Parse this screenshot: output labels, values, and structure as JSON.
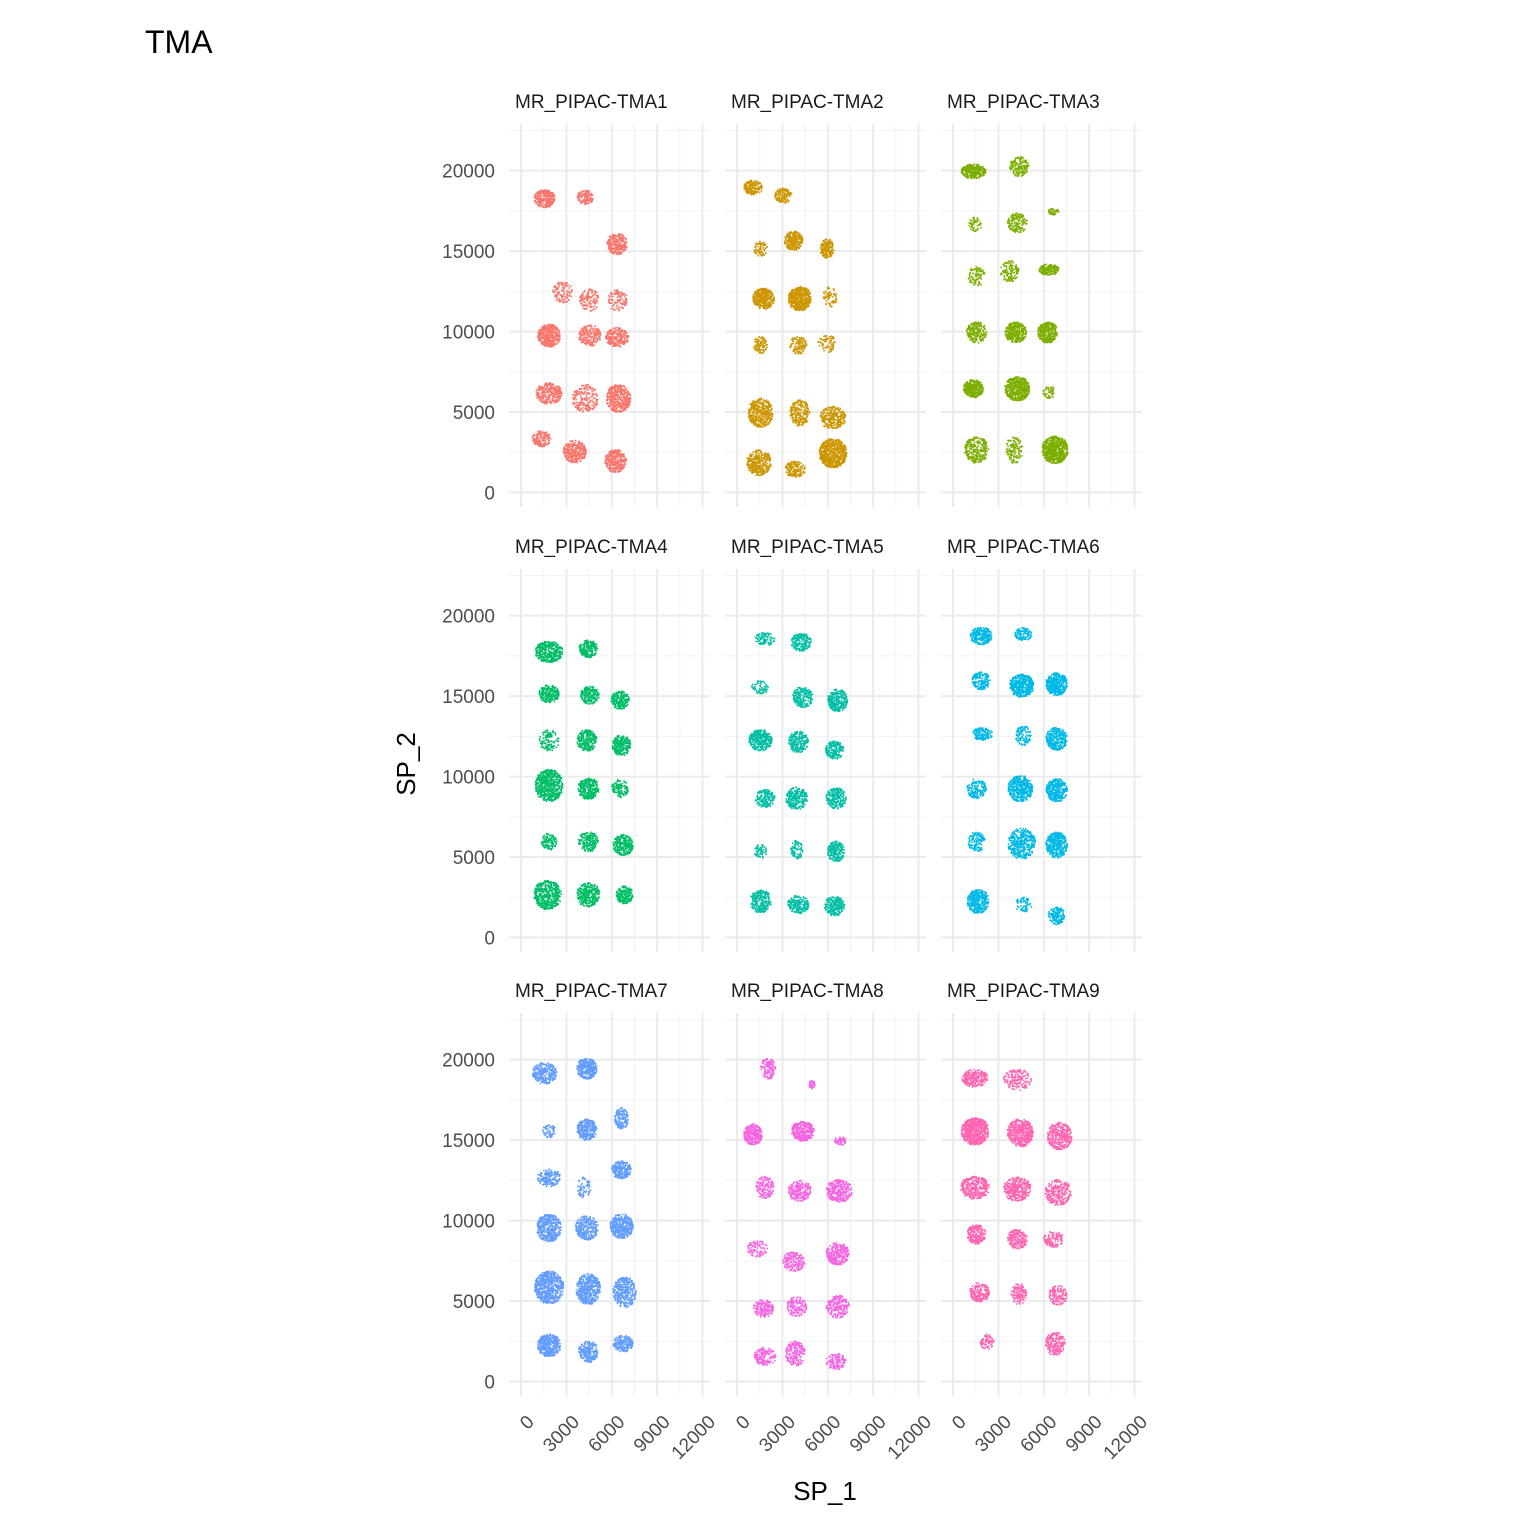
{
  "title": "TMA",
  "chart_data": {
    "type": "scatter",
    "title": "TMA",
    "xlabel": "SP_1",
    "ylabel": "SP_2",
    "xlim": [
      -800,
      12500
    ],
    "ylim": [
      -900,
      22900
    ],
    "x_ticks": [
      0,
      3000,
      6000,
      9000,
      12000
    ],
    "x_tick_labels": [
      "0",
      "3000",
      "6000",
      "9000",
      "12000"
    ],
    "y_ticks": [
      0,
      5000,
      10000,
      15000,
      20000
    ],
    "y_tick_labels": [
      "0",
      "5000",
      "10000",
      "15000",
      "20000"
    ],
    "grid": true,
    "legend": "none",
    "facets": [
      {
        "label": "MR_PIPAC-TMA1",
        "color": "#F8766D",
        "cores": [
          [
            1500,
            18300,
            1350,
            1100,
            0.8
          ],
          [
            4200,
            18400,
            1050,
            900,
            0.55
          ],
          [
            6300,
            15500,
            1300,
            1300,
            0.7
          ],
          [
            2700,
            12500,
            1300,
            1300,
            0.25
          ],
          [
            4500,
            12000,
            1350,
            1350,
            0.3
          ],
          [
            6300,
            12000,
            1300,
            1300,
            0.25
          ],
          [
            1800,
            9800,
            1500,
            1400,
            0.75
          ],
          [
            4500,
            9800,
            1450,
            1300,
            0.45
          ],
          [
            6300,
            9700,
            1500,
            1200,
            0.6
          ],
          [
            1800,
            6200,
            1700,
            1300,
            0.55
          ],
          [
            4200,
            5900,
            1700,
            1700,
            0.3
          ],
          [
            6400,
            5900,
            1600,
            1700,
            0.65
          ],
          [
            1300,
            3400,
            1200,
            1000,
            0.5
          ],
          [
            3500,
            2600,
            1500,
            1400,
            0.6
          ],
          [
            6200,
            2000,
            1400,
            1400,
            0.7
          ]
        ]
      },
      {
        "label": "MR_PIPAC-TMA2",
        "color": "#CD9600",
        "cores": [
          [
            1000,
            19000,
            1200,
            900,
            0.65
          ],
          [
            3000,
            18500,
            1100,
            900,
            0.55
          ],
          [
            1500,
            15200,
            900,
            900,
            0.3
          ],
          [
            3700,
            15700,
            1200,
            1200,
            0.7
          ],
          [
            5900,
            15200,
            900,
            1200,
            0.65
          ],
          [
            1700,
            12100,
            1400,
            1300,
            0.85
          ],
          [
            4100,
            12100,
            1500,
            1500,
            0.9
          ],
          [
            6100,
            12200,
            900,
            1200,
            0.25
          ],
          [
            1500,
            9200,
            900,
            1100,
            0.35
          ],
          [
            4000,
            9200,
            1100,
            1100,
            0.4
          ],
          [
            5900,
            9300,
            1200,
            1100,
            0.2
          ],
          [
            1500,
            5000,
            1600,
            1800,
            0.6
          ],
          [
            4100,
            5000,
            1300,
            1600,
            0.45
          ],
          [
            6300,
            4700,
            1700,
            1400,
            0.5
          ],
          [
            1400,
            1900,
            1600,
            1600,
            0.55
          ],
          [
            3800,
            1500,
            1300,
            1000,
            0.55
          ],
          [
            6300,
            2500,
            1800,
            1800,
            0.85
          ]
        ]
      },
      {
        "label": "MR_PIPAC-TMA3",
        "color": "#7CAE00",
        "cores": [
          [
            1300,
            20000,
            1600,
            900,
            0.85
          ],
          [
            4300,
            20300,
            1300,
            1200,
            0.45
          ],
          [
            6600,
            17500,
            700,
            400,
            0.35
          ],
          [
            1400,
            16700,
            800,
            900,
            0.25
          ],
          [
            4200,
            16800,
            1300,
            1200,
            0.4
          ],
          [
            1500,
            13500,
            1100,
            1200,
            0.25
          ],
          [
            3700,
            13800,
            1200,
            1300,
            0.3
          ],
          [
            6300,
            13900,
            1300,
            700,
            0.8
          ],
          [
            1500,
            10000,
            1300,
            1300,
            0.55
          ],
          [
            4100,
            10000,
            1400,
            1300,
            0.7
          ],
          [
            6200,
            10000,
            1300,
            1300,
            0.75
          ],
          [
            1300,
            6500,
            1300,
            1100,
            0.9
          ],
          [
            4200,
            6500,
            1600,
            1500,
            0.85
          ],
          [
            6300,
            6300,
            800,
            800,
            0.25
          ],
          [
            1500,
            2700,
            1600,
            1600,
            0.45
          ],
          [
            4000,
            2700,
            1100,
            1700,
            0.25
          ],
          [
            6700,
            2700,
            1700,
            1700,
            0.95
          ]
        ]
      },
      {
        "label": "MR_PIPAC-TMA4",
        "color": "#00BE67",
        "cores": [
          [
            1800,
            17800,
            1800,
            1300,
            0.65
          ],
          [
            4400,
            18000,
            1200,
            1100,
            0.65
          ],
          [
            1800,
            15200,
            1300,
            1100,
            0.65
          ],
          [
            4500,
            15100,
            1200,
            1100,
            0.65
          ],
          [
            6500,
            14800,
            1200,
            1100,
            0.7
          ],
          [
            1800,
            12300,
            1300,
            1300,
            0.25
          ],
          [
            4300,
            12300,
            1300,
            1300,
            0.6
          ],
          [
            6600,
            12000,
            1200,
            1300,
            0.7
          ],
          [
            1800,
            9500,
            1800,
            2000,
            0.7
          ],
          [
            4400,
            9300,
            1400,
            1300,
            0.65
          ],
          [
            6500,
            9300,
            1100,
            1100,
            0.4
          ],
          [
            1800,
            6000,
            1000,
            1000,
            0.4
          ],
          [
            4400,
            6000,
            1300,
            1200,
            0.55
          ],
          [
            6700,
            5800,
            1300,
            1300,
            0.6
          ],
          [
            1700,
            2700,
            1800,
            1800,
            0.65
          ],
          [
            4400,
            2700,
            1500,
            1500,
            0.6
          ],
          [
            6800,
            2700,
            1100,
            1100,
            0.7
          ]
        ]
      },
      {
        "label": "MR_PIPAC-TMA5",
        "color": "#00BFA5",
        "cores": [
          [
            1800,
            18600,
            1300,
            800,
            0.4
          ],
          [
            4200,
            18400,
            1300,
            1100,
            0.55
          ],
          [
            1500,
            15600,
            1200,
            800,
            0.2
          ],
          [
            4300,
            15000,
            1300,
            1300,
            0.45
          ],
          [
            6600,
            14800,
            1300,
            1400,
            0.6
          ],
          [
            1500,
            12300,
            1500,
            1300,
            0.7
          ],
          [
            4000,
            12200,
            1300,
            1300,
            0.55
          ],
          [
            6400,
            11700,
            1200,
            1100,
            0.55
          ],
          [
            1800,
            8700,
            1300,
            1100,
            0.45
          ],
          [
            3900,
            8700,
            1400,
            1400,
            0.55
          ],
          [
            6500,
            8700,
            1300,
            1300,
            0.55
          ],
          [
            1500,
            5400,
            800,
            900,
            0.25
          ],
          [
            3900,
            5500,
            800,
            1200,
            0.3
          ],
          [
            6500,
            5400,
            1100,
            1300,
            0.55
          ],
          [
            1500,
            2300,
            1400,
            1400,
            0.5
          ],
          [
            4000,
            2100,
            1400,
            1100,
            0.55
          ],
          [
            6400,
            2000,
            1300,
            1200,
            0.6
          ]
        ]
      },
      {
        "label": "MR_PIPAC-TMA6",
        "color": "#00B8E7",
        "cores": [
          [
            1800,
            18800,
            1400,
            1100,
            0.65
          ],
          [
            4600,
            18900,
            1100,
            800,
            0.45
          ],
          [
            1800,
            16000,
            1200,
            1100,
            0.55
          ],
          [
            4500,
            15700,
            1600,
            1400,
            0.85
          ],
          [
            6800,
            15800,
            1400,
            1400,
            0.85
          ],
          [
            1900,
            12700,
            1300,
            800,
            0.55
          ],
          [
            4600,
            12600,
            1000,
            1200,
            0.35
          ],
          [
            6800,
            12400,
            1400,
            1400,
            0.6
          ],
          [
            1500,
            9300,
            1300,
            1200,
            0.35
          ],
          [
            4400,
            9300,
            1600,
            1600,
            0.65
          ],
          [
            6800,
            9200,
            1400,
            1400,
            0.75
          ],
          [
            1500,
            6000,
            1100,
            1200,
            0.35
          ],
          [
            4500,
            5900,
            1800,
            1900,
            0.45
          ],
          [
            6800,
            5800,
            1400,
            1600,
            0.7
          ],
          [
            1600,
            2300,
            1400,
            1500,
            0.65
          ],
          [
            4600,
            2100,
            1100,
            900,
            0.2
          ],
          [
            6800,
            1400,
            1100,
            1100,
            0.5
          ]
        ]
      },
      {
        "label": "MR_PIPAC-TMA7",
        "color": "#619CFF",
        "cores": [
          [
            1500,
            19200,
            1600,
            1300,
            0.55
          ],
          [
            4300,
            19500,
            1300,
            1300,
            0.8
          ],
          [
            6600,
            16400,
            900,
            1300,
            0.55
          ],
          [
            1800,
            15600,
            900,
            800,
            0.35
          ],
          [
            4300,
            15700,
            1300,
            1300,
            0.7
          ],
          [
            6600,
            13200,
            1300,
            1100,
            0.65
          ],
          [
            1800,
            12700,
            1500,
            1100,
            0.4
          ],
          [
            4100,
            12100,
            900,
            1300,
            0.2
          ],
          [
            1800,
            9600,
            1600,
            1700,
            0.65
          ],
          [
            4300,
            9600,
            1500,
            1500,
            0.5
          ],
          [
            6600,
            9700,
            1500,
            1500,
            0.7
          ],
          [
            1800,
            5900,
            1900,
            2000,
            0.7
          ],
          [
            4400,
            5800,
            1600,
            1900,
            0.6
          ],
          [
            6800,
            5600,
            1500,
            1900,
            0.5
          ],
          [
            1800,
            2300,
            1500,
            1400,
            0.7
          ],
          [
            4400,
            1900,
            1300,
            1300,
            0.55
          ],
          [
            6700,
            2400,
            1300,
            1000,
            0.6
          ]
        ]
      },
      {
        "label": "MR_PIPAC-TMA8",
        "color": "#F564E3",
        "cores": [
          [
            2000,
            19500,
            1000,
            1300,
            0.4
          ],
          [
            4900,
            18500,
            400,
            500,
            0.55
          ],
          [
            1000,
            15400,
            1200,
            1300,
            0.75
          ],
          [
            4300,
            15600,
            1500,
            1200,
            0.85
          ],
          [
            6800,
            15000,
            900,
            500,
            0.35
          ],
          [
            1800,
            12100,
            1200,
            1400,
            0.4
          ],
          [
            4100,
            11900,
            1500,
            1300,
            0.45
          ],
          [
            6700,
            11900,
            1700,
            1400,
            0.55
          ],
          [
            1300,
            8300,
            1300,
            1000,
            0.3
          ],
          [
            3700,
            7500,
            1500,
            1200,
            0.4
          ],
          [
            6600,
            8000,
            1500,
            1400,
            0.55
          ],
          [
            1700,
            4600,
            1300,
            1100,
            0.45
          ],
          [
            3900,
            4700,
            1300,
            1200,
            0.4
          ],
          [
            6600,
            4700,
            1500,
            1400,
            0.45
          ],
          [
            1800,
            1600,
            1400,
            1100,
            0.4
          ],
          [
            3800,
            1800,
            1300,
            1500,
            0.45
          ],
          [
            6500,
            1300,
            1300,
            1000,
            0.35
          ]
        ]
      },
      {
        "label": "MR_PIPAC-TMA9",
        "color": "#FF64B0",
        "cores": [
          [
            1400,
            18900,
            1700,
            1100,
            0.55
          ],
          [
            4200,
            18800,
            1800,
            1300,
            0.3
          ],
          [
            1400,
            15600,
            1800,
            1700,
            0.85
          ],
          [
            4400,
            15500,
            1700,
            1700,
            0.7
          ],
          [
            7000,
            15300,
            1600,
            1700,
            0.55
          ],
          [
            1400,
            12100,
            1900,
            1400,
            0.55
          ],
          [
            4200,
            12000,
            1800,
            1500,
            0.55
          ],
          [
            6900,
            11800,
            1700,
            1600,
            0.4
          ],
          [
            1500,
            9200,
            1200,
            1200,
            0.65
          ],
          [
            4200,
            8900,
            1300,
            1200,
            0.5
          ],
          [
            6600,
            8900,
            1300,
            1000,
            0.35
          ],
          [
            1700,
            5600,
            1300,
            1200,
            0.45
          ],
          [
            4300,
            5500,
            1000,
            1300,
            0.4
          ],
          [
            6900,
            5400,
            1200,
            1200,
            0.4
          ],
          [
            2200,
            2500,
            900,
            1000,
            0.3
          ],
          [
            6700,
            2400,
            1300,
            1400,
            0.5
          ]
        ]
      }
    ]
  }
}
